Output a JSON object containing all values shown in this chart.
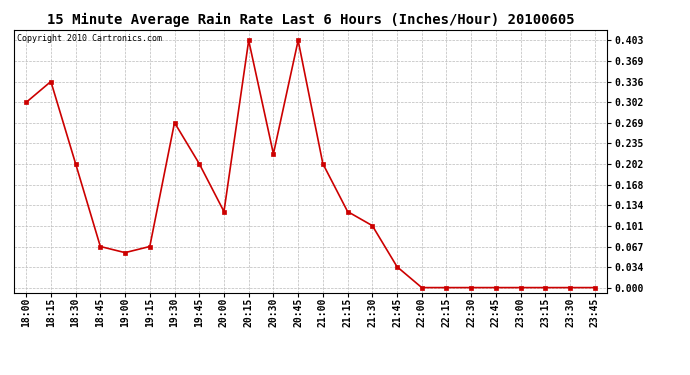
{
  "title": "15 Minute Average Rain Rate Last 6 Hours (Inches/Hour) 20100605",
  "copyright": "Copyright 2010 Cartronics.com",
  "x_labels": [
    "18:00",
    "18:15",
    "18:30",
    "18:45",
    "19:00",
    "19:15",
    "19:30",
    "19:45",
    "20:00",
    "20:15",
    "20:30",
    "20:45",
    "21:00",
    "21:15",
    "21:30",
    "21:45",
    "22:00",
    "22:15",
    "22:30",
    "22:45",
    "23:00",
    "23:15",
    "23:30",
    "23:45"
  ],
  "y_values": [
    0.302,
    0.336,
    0.202,
    0.067,
    0.057,
    0.067,
    0.269,
    0.202,
    0.124,
    0.403,
    0.218,
    0.403,
    0.202,
    0.124,
    0.101,
    0.034,
    0.0,
    0.0,
    0.0,
    0.0,
    0.0,
    0.0,
    0.0,
    0.0
  ],
  "y_ticks": [
    0.0,
    0.034,
    0.067,
    0.101,
    0.134,
    0.168,
    0.202,
    0.235,
    0.269,
    0.302,
    0.336,
    0.369,
    0.403
  ],
  "line_color": "#cc0000",
  "marker": "s",
  "marker_size": 2.5,
  "bg_color": "#ffffff",
  "grid_color": "#bbbbbb",
  "title_fontsize": 10,
  "tick_fontsize": 7,
  "copyright_fontsize": 6,
  "ylim": [
    -0.008,
    0.42
  ]
}
